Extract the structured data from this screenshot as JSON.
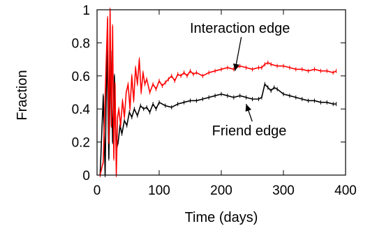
{
  "chart_data": {
    "type": "line",
    "title": "",
    "xlabel": "Time (days)",
    "ylabel": "Fraction",
    "xlim": [
      0,
      400
    ],
    "ylim": [
      0,
      1
    ],
    "xticks": [
      "0",
      "100",
      "200",
      "300",
      "400"
    ],
    "yticks": [
      "0",
      "0.2",
      "0.4",
      "0.6",
      "0.8",
      "1"
    ],
    "grid": false,
    "legend": "none",
    "colors": {
      "interaction": "#ff0000",
      "friend": "#000000"
    },
    "series": [
      {
        "key": "interaction",
        "x": [
          5,
          10,
          14,
          17,
          19,
          21,
          23,
          25,
          27,
          29,
          31,
          33,
          35,
          38,
          41,
          44,
          47,
          50,
          53,
          56,
          59,
          62,
          65,
          68,
          71,
          74,
          77,
          80,
          85,
          90,
          95,
          100,
          105,
          110,
          115,
          120,
          125,
          130,
          135,
          140,
          145,
          150,
          155,
          160,
          170,
          180,
          190,
          200,
          210,
          220,
          230,
          240,
          250,
          260,
          265,
          270,
          275,
          280,
          290,
          300,
          310,
          320,
          330,
          340,
          350,
          360,
          370,
          380,
          385
        ],
        "y": [
          0.0,
          0.08,
          0.6,
          0.95,
          0.2,
          1.0,
          0.3,
          0.9,
          0.1,
          0.55,
          0.0,
          0.35,
          0.4,
          0.3,
          0.45,
          0.35,
          0.5,
          0.55,
          0.4,
          0.6,
          0.45,
          0.65,
          0.55,
          0.7,
          0.5,
          0.62,
          0.55,
          0.58,
          0.5,
          0.55,
          0.52,
          0.57,
          0.54,
          0.56,
          0.58,
          0.6,
          0.57,
          0.61,
          0.6,
          0.62,
          0.6,
          0.63,
          0.61,
          0.62,
          0.6,
          0.62,
          0.63,
          0.64,
          0.65,
          0.64,
          0.66,
          0.65,
          0.64,
          0.65,
          0.65,
          0.67,
          0.68,
          0.67,
          0.66,
          0.66,
          0.65,
          0.64,
          0.64,
          0.63,
          0.64,
          0.63,
          0.63,
          0.62,
          0.63
        ]
      },
      {
        "key": "friend",
        "x": [
          5,
          10,
          13,
          16,
          19,
          22,
          25,
          28,
          31,
          34,
          37,
          40,
          44,
          48,
          52,
          56,
          60,
          65,
          70,
          75,
          80,
          85,
          90,
          95,
          100,
          110,
          120,
          130,
          140,
          150,
          160,
          170,
          180,
          190,
          200,
          210,
          220,
          230,
          240,
          250,
          260,
          265,
          270,
          275,
          280,
          285,
          290,
          300,
          310,
          320,
          330,
          340,
          350,
          360,
          370,
          380,
          385
        ],
        "y": [
          0.0,
          0.48,
          0.0,
          0.8,
          0.1,
          0.75,
          0.2,
          0.6,
          0.15,
          0.2,
          0.3,
          0.25,
          0.33,
          0.3,
          0.38,
          0.35,
          0.4,
          0.36,
          0.42,
          0.4,
          0.41,
          0.38,
          0.43,
          0.4,
          0.44,
          0.42,
          0.41,
          0.43,
          0.44,
          0.45,
          0.45,
          0.46,
          0.47,
          0.48,
          0.49,
          0.48,
          0.47,
          0.48,
          0.47,
          0.46,
          0.46,
          0.47,
          0.55,
          0.53,
          0.51,
          0.53,
          0.52,
          0.49,
          0.48,
          0.47,
          0.46,
          0.45,
          0.45,
          0.44,
          0.44,
          0.43,
          0.43
        ]
      }
    ],
    "annotations": [
      {
        "text": "Interaction edge",
        "x": 230,
        "y": 0.86,
        "arrow_to": [
          222,
          0.63
        ]
      },
      {
        "text": "Friend edge",
        "x": 245,
        "y": 0.24,
        "arrow_to": [
          240,
          0.43
        ]
      }
    ]
  }
}
